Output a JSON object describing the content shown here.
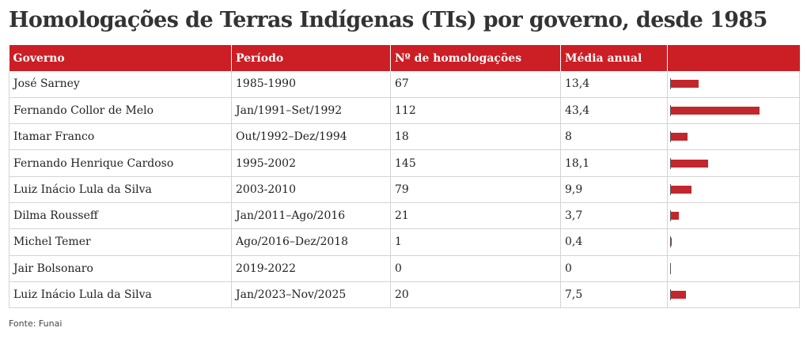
{
  "title": "Homologações de Terras Indígenas (TIs) por governo, desde 1985",
  "headers": [
    "Governo",
    "Período",
    "Nº de homologações",
    "Média anual",
    ""
  ],
  "rows": [
    {
      "governo": "José Sarney",
      "periodo": "1985-1990",
      "homologacoes": "67",
      "media": "13,4"
    },
    {
      "governo": "Fernando Collor de Melo",
      "periodo": "Jan/1991–Set/1992",
      "homologacoes": "112",
      "media": "43,4"
    },
    {
      "governo": "Itamar Franco",
      "periodo": "Out/1992–Dez/1994",
      "homologacoes": "18",
      "media": "8"
    },
    {
      "governo": "Fernando Henrique Cardoso",
      "periodo": "1995-2002",
      "homologacoes": "145",
      "media": "18,1"
    },
    {
      "governo": "Luiz Inácio Lula da Silva",
      "periodo": "2003-2010",
      "homologacoes": "79",
      "media": "9,9"
    },
    {
      "governo": "Dilma Rousseff",
      "periodo": "Jan/2011–Ago/2016",
      "homologacoes": "21",
      "media": "3,7"
    },
    {
      "governo": "Michel Temer",
      "periodo": "Ago/2016–Dez/2018",
      "homologacoes": "1",
      "media": "0,4"
    },
    {
      "governo": "Jair Bolsonaro",
      "periodo": "2019-2022",
      "homologacoes": "0",
      "media": "0"
    },
    {
      "governo": "Luiz Inácio Lula da Silva",
      "periodo": "Jan/2023–Nov/2025",
      "homologacoes": "20",
      "media": "7,5"
    }
  ],
  "source": "Fonte: Funai",
  "colors": {
    "header_background": "#cc1e25",
    "bar": "#c1272d"
  },
  "chart_data": {
    "type": "table",
    "title": "Homologações de Terras Indígenas (TIs) por governo, desde 1985",
    "columns": [
      "Governo",
      "Período",
      "Nº de homologações",
      "Média anual"
    ],
    "bar_column": "Média anual",
    "categories": [
      "José Sarney",
      "Fernando Collor de Melo",
      "Itamar Franco",
      "Fernando Henrique Cardoso",
      "Luiz Inácio Lula da Silva",
      "Dilma Rousseff",
      "Michel Temer",
      "Jair Bolsonaro",
      "Luiz Inácio Lula da Silva"
    ],
    "periods": [
      "1985-1990",
      "Jan/1991–Set/1992",
      "Out/1992–Dez/1994",
      "1995-2002",
      "2003-2010",
      "Jan/2011–Ago/2016",
      "Ago/2016–Dez/2018",
      "2019-2022",
      "Jan/2023–Nov/2025"
    ],
    "homologacoes": [
      67,
      112,
      18,
      145,
      79,
      21,
      1,
      0,
      20
    ],
    "values": [
      13.4,
      43.4,
      8,
      18.1,
      9.9,
      3.7,
      0.4,
      0,
      7.5
    ],
    "xlim": [
      0,
      43.4
    ],
    "source": "Fonte: Funai"
  }
}
